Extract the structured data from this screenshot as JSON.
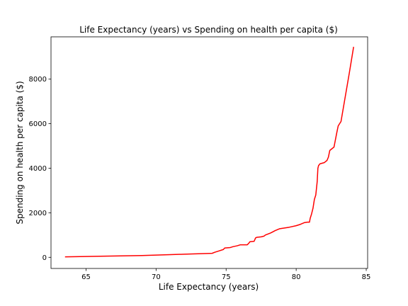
{
  "chart_data": {
    "type": "line",
    "title": "Life Expectancy (years) vs Spending on health per capita ($)",
    "xlabel": "Life Expectancy (years)",
    "ylabel": "Spending on health per capita ($)",
    "xlim": [
      62.5,
      85.1
    ],
    "ylim": [
      -500,
      9900
    ],
    "xticks": [
      65,
      70,
      75,
      80,
      85
    ],
    "yticks": [
      0,
      2000,
      4000,
      6000,
      8000
    ],
    "grid": false,
    "legend": "none",
    "series": [
      {
        "color": "#ff0000",
        "x": [
          63.5,
          66.0,
          69.0,
          70.0,
          71.0,
          72.0,
          73.0,
          74.0,
          74.2,
          74.5,
          74.8,
          74.9,
          75.3,
          75.5,
          75.8,
          76.0,
          76.5,
          76.6,
          76.7,
          77.0,
          77.1,
          77.2,
          77.5,
          77.7,
          77.8,
          78.2,
          78.5,
          78.8,
          79.0,
          79.5,
          80.0,
          80.3,
          80.6,
          80.8,
          80.95,
          81.0,
          81.1,
          81.2,
          81.3,
          81.4,
          81.5,
          81.55,
          81.6,
          81.7,
          82.0,
          82.2,
          82.3,
          82.4,
          82.7,
          82.9,
          83.0,
          83.2,
          83.5,
          83.8,
          84.1
        ],
        "y": [
          20,
          50,
          80,
          100,
          120,
          140,
          160,
          180,
          230,
          290,
          350,
          420,
          440,
          480,
          520,
          560,
          560,
          620,
          700,
          720,
          870,
          900,
          920,
          950,
          1000,
          1100,
          1200,
          1280,
          1300,
          1350,
          1420,
          1480,
          1560,
          1580,
          1580,
          1750,
          1950,
          2200,
          2600,
          2800,
          3400,
          4000,
          4120,
          4200,
          4250,
          4350,
          4500,
          4800,
          4950,
          5600,
          5900,
          6100,
          7200,
          8300,
          9450
        ]
      }
    ]
  }
}
